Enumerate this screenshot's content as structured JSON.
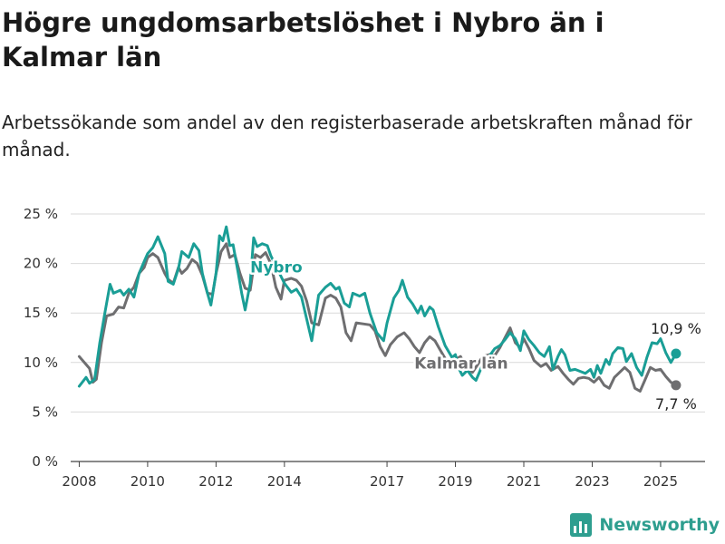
{
  "header": {
    "title": "Högre ungdomsarbetslöshet i Nybro än i Kalmar län",
    "subtitle": "Arbetssökande som andel av den registerbaserade arbetskraften månad för månad."
  },
  "brand": {
    "name": "Newsworthy",
    "color": "#2e9e8f"
  },
  "chart_data": {
    "type": "line",
    "title": "Högre ungdomsarbetslöshet i Nybro än i Kalmar län",
    "subtitle": "Arbetssökande som andel av den registerbaserade arbetskraften månad för månad.",
    "xlabel": "",
    "ylabel": "",
    "x_ticks": [
      "2008",
      "2010",
      "2012",
      "2014",
      "2017",
      "2019",
      "2021",
      "2023",
      "2025"
    ],
    "y_ticks": [
      "0 %",
      "5 %",
      "10 %",
      "15 %",
      "20 %",
      "25 %"
    ],
    "ylim": [
      0,
      25
    ],
    "xlim": [
      2007.75,
      2026.3
    ],
    "grid": true,
    "legend": "direct labels on lines",
    "series": [
      {
        "name": "Nybro",
        "color": "#1a9e96",
        "end_label": "10,9 %",
        "points": [
          [
            2008.0,
            7.6
          ],
          [
            2008.2,
            8.5
          ],
          [
            2008.3,
            7.9
          ],
          [
            2008.45,
            8.3
          ],
          [
            2008.6,
            12.0
          ],
          [
            2008.75,
            15.0
          ],
          [
            2008.9,
            17.9
          ],
          [
            2009.0,
            17.0
          ],
          [
            2009.2,
            17.3
          ],
          [
            2009.3,
            16.8
          ],
          [
            2009.45,
            17.4
          ],
          [
            2009.6,
            16.6
          ],
          [
            2009.75,
            19.0
          ],
          [
            2009.9,
            20.2
          ],
          [
            2010.0,
            21.0
          ],
          [
            2010.15,
            21.6
          ],
          [
            2010.3,
            22.7
          ],
          [
            2010.5,
            21.0
          ],
          [
            2010.6,
            18.2
          ],
          [
            2010.75,
            17.9
          ],
          [
            2010.9,
            19.5
          ],
          [
            2011.0,
            21.2
          ],
          [
            2011.2,
            20.6
          ],
          [
            2011.35,
            22.0
          ],
          [
            2011.5,
            21.3
          ],
          [
            2011.6,
            19.0
          ],
          [
            2011.75,
            17.0
          ],
          [
            2011.85,
            15.8
          ],
          [
            2012.0,
            19.0
          ],
          [
            2012.1,
            22.8
          ],
          [
            2012.2,
            22.3
          ],
          [
            2012.3,
            23.7
          ],
          [
            2012.4,
            21.8
          ],
          [
            2012.5,
            21.9
          ],
          [
            2012.65,
            19.0
          ],
          [
            2012.75,
            17.0
          ],
          [
            2012.85,
            15.3
          ],
          [
            2013.0,
            18.0
          ],
          [
            2013.1,
            22.6
          ],
          [
            2013.2,
            21.7
          ],
          [
            2013.35,
            22.0
          ],
          [
            2013.5,
            21.8
          ],
          [
            2013.6,
            20.8
          ],
          [
            2014.0,
            18.0
          ],
          [
            2014.2,
            17.1
          ],
          [
            2014.35,
            17.4
          ],
          [
            2014.5,
            16.6
          ],
          [
            2014.65,
            14.4
          ],
          [
            2014.8,
            12.2
          ],
          [
            2015.0,
            16.8
          ],
          [
            2015.2,
            17.6
          ],
          [
            2015.35,
            18.0
          ],
          [
            2015.5,
            17.4
          ],
          [
            2015.6,
            17.6
          ],
          [
            2015.75,
            16.0
          ],
          [
            2015.9,
            15.6
          ],
          [
            2016.0,
            17.0
          ],
          [
            2016.2,
            16.7
          ],
          [
            2016.35,
            17.0
          ],
          [
            2016.5,
            15.0
          ],
          [
            2016.7,
            13.0
          ],
          [
            2016.9,
            12.2
          ],
          [
            2017.0,
            14.0
          ],
          [
            2017.2,
            16.5
          ],
          [
            2017.35,
            17.3
          ],
          [
            2017.45,
            18.3
          ],
          [
            2017.6,
            16.6
          ],
          [
            2017.75,
            15.9
          ],
          [
            2017.9,
            15.0
          ],
          [
            2018.0,
            15.7
          ],
          [
            2018.1,
            14.7
          ],
          [
            2018.25,
            15.6
          ],
          [
            2018.35,
            15.3
          ],
          [
            2018.5,
            13.6
          ],
          [
            2018.7,
            11.7
          ],
          [
            2018.9,
            10.5
          ],
          [
            2019.0,
            10.8
          ],
          [
            2019.1,
            9.4
          ],
          [
            2019.2,
            8.7
          ],
          [
            2019.35,
            9.2
          ],
          [
            2019.5,
            8.5
          ],
          [
            2019.6,
            8.2
          ],
          [
            2019.8,
            9.8
          ],
          [
            2020.0,
            10.7
          ],
          [
            2020.15,
            11.4
          ],
          [
            2020.3,
            11.7
          ],
          [
            2020.45,
            12.3
          ],
          [
            2020.6,
            13.0
          ],
          [
            2020.75,
            12.4
          ],
          [
            2020.9,
            11.2
          ],
          [
            2021.0,
            13.2
          ],
          [
            2021.15,
            12.3
          ],
          [
            2021.3,
            11.7
          ],
          [
            2021.45,
            11.0
          ],
          [
            2021.6,
            10.6
          ],
          [
            2021.75,
            11.6
          ],
          [
            2021.85,
            9.3
          ],
          [
            2022.0,
            10.6
          ],
          [
            2022.1,
            11.3
          ],
          [
            2022.2,
            10.8
          ],
          [
            2022.35,
            9.2
          ],
          [
            2022.5,
            9.3
          ],
          [
            2022.65,
            9.1
          ],
          [
            2022.8,
            8.9
          ],
          [
            2022.95,
            9.3
          ],
          [
            2023.05,
            8.5
          ],
          [
            2023.15,
            9.7
          ],
          [
            2023.25,
            8.9
          ],
          [
            2023.4,
            10.3
          ],
          [
            2023.5,
            9.8
          ],
          [
            2023.6,
            10.9
          ],
          [
            2023.75,
            11.5
          ],
          [
            2023.9,
            11.4
          ],
          [
            2024.0,
            10.1
          ],
          [
            2024.15,
            10.9
          ],
          [
            2024.3,
            9.5
          ],
          [
            2024.45,
            8.7
          ],
          [
            2024.6,
            10.5
          ],
          [
            2024.75,
            12.0
          ],
          [
            2024.9,
            11.9
          ],
          [
            2025.0,
            12.4
          ],
          [
            2025.15,
            11.0
          ],
          [
            2025.3,
            10.0
          ],
          [
            2025.45,
            10.9
          ]
        ]
      },
      {
        "name": "Kalmar län",
        "color": "#6e6e70",
        "end_label": "7,7 %",
        "points": [
          [
            2008.0,
            10.6
          ],
          [
            2008.2,
            9.8
          ],
          [
            2008.3,
            9.4
          ],
          [
            2008.4,
            8.0
          ],
          [
            2008.5,
            8.3
          ],
          [
            2008.65,
            12.0
          ],
          [
            2008.8,
            14.7
          ],
          [
            2009.0,
            14.9
          ],
          [
            2009.15,
            15.6
          ],
          [
            2009.3,
            15.5
          ],
          [
            2009.45,
            17.0
          ],
          [
            2009.6,
            17.6
          ],
          [
            2009.75,
            19.0
          ],
          [
            2009.9,
            19.6
          ],
          [
            2010.0,
            20.6
          ],
          [
            2010.15,
            21.0
          ],
          [
            2010.3,
            20.6
          ],
          [
            2010.5,
            19.0
          ],
          [
            2010.6,
            18.4
          ],
          [
            2010.75,
            18.0
          ],
          [
            2010.9,
            19.6
          ],
          [
            2011.0,
            19.0
          ],
          [
            2011.15,
            19.5
          ],
          [
            2011.3,
            20.4
          ],
          [
            2011.45,
            20.0
          ],
          [
            2011.6,
            18.8
          ],
          [
            2011.75,
            17.0
          ],
          [
            2011.9,
            16.9
          ],
          [
            2012.0,
            19.0
          ],
          [
            2012.15,
            21.2
          ],
          [
            2012.3,
            22.0
          ],
          [
            2012.4,
            20.6
          ],
          [
            2012.55,
            20.9
          ],
          [
            2012.7,
            19.0
          ],
          [
            2012.85,
            17.5
          ],
          [
            2013.0,
            17.3
          ],
          [
            2013.15,
            20.9
          ],
          [
            2013.3,
            20.6
          ],
          [
            2013.45,
            21.1
          ],
          [
            2013.6,
            20.0
          ],
          [
            2013.75,
            17.6
          ],
          [
            2013.9,
            16.4
          ],
          [
            2014.0,
            18.3
          ],
          [
            2014.2,
            18.5
          ],
          [
            2014.35,
            18.3
          ],
          [
            2014.5,
            17.7
          ],
          [
            2014.65,
            16.2
          ],
          [
            2014.8,
            14.0
          ],
          [
            2015.0,
            13.8
          ],
          [
            2015.2,
            16.5
          ],
          [
            2015.35,
            16.8
          ],
          [
            2015.5,
            16.5
          ],
          [
            2015.65,
            15.6
          ],
          [
            2015.8,
            13.0
          ],
          [
            2015.95,
            12.2
          ],
          [
            2016.1,
            14.0
          ],
          [
            2016.3,
            13.9
          ],
          [
            2016.5,
            13.8
          ],
          [
            2016.65,
            13.2
          ],
          [
            2016.8,
            11.6
          ],
          [
            2016.95,
            10.7
          ],
          [
            2017.1,
            11.8
          ],
          [
            2017.3,
            12.6
          ],
          [
            2017.5,
            13.0
          ],
          [
            2017.65,
            12.4
          ],
          [
            2017.8,
            11.6
          ],
          [
            2017.95,
            11.0
          ],
          [
            2018.1,
            12.0
          ],
          [
            2018.25,
            12.6
          ],
          [
            2018.4,
            12.2
          ],
          [
            2018.55,
            11.3
          ],
          [
            2018.7,
            10.4
          ],
          [
            2018.85,
            9.9
          ],
          [
            2019.0,
            10.3
          ],
          [
            2019.15,
            10.6
          ],
          [
            2019.3,
            9.6
          ],
          [
            2019.5,
            9.0
          ],
          [
            2019.65,
            9.8
          ],
          [
            2019.8,
            10.6
          ],
          [
            2020.0,
            10.8
          ],
          [
            2020.15,
            10.7
          ],
          [
            2020.3,
            11.5
          ],
          [
            2020.45,
            12.5
          ],
          [
            2020.6,
            13.5
          ],
          [
            2020.75,
            12.0
          ],
          [
            2020.9,
            11.5
          ],
          [
            2021.0,
            12.4
          ],
          [
            2021.15,
            11.4
          ],
          [
            2021.3,
            10.2
          ],
          [
            2021.5,
            9.6
          ],
          [
            2021.65,
            9.9
          ],
          [
            2021.8,
            9.2
          ],
          [
            2022.0,
            9.6
          ],
          [
            2022.15,
            8.9
          ],
          [
            2022.3,
            8.3
          ],
          [
            2022.45,
            7.8
          ],
          [
            2022.6,
            8.4
          ],
          [
            2022.75,
            8.5
          ],
          [
            2022.9,
            8.4
          ],
          [
            2023.05,
            8.0
          ],
          [
            2023.2,
            8.5
          ],
          [
            2023.35,
            7.7
          ],
          [
            2023.5,
            7.4
          ],
          [
            2023.65,
            8.5
          ],
          [
            2023.8,
            9.0
          ],
          [
            2023.95,
            9.5
          ],
          [
            2024.1,
            9.0
          ],
          [
            2024.25,
            7.4
          ],
          [
            2024.4,
            7.1
          ],
          [
            2024.55,
            8.3
          ],
          [
            2024.7,
            9.5
          ],
          [
            2024.85,
            9.2
          ],
          [
            2025.0,
            9.3
          ],
          [
            2025.15,
            8.6
          ],
          [
            2025.3,
            8.0
          ],
          [
            2025.45,
            7.7
          ]
        ]
      }
    ]
  }
}
